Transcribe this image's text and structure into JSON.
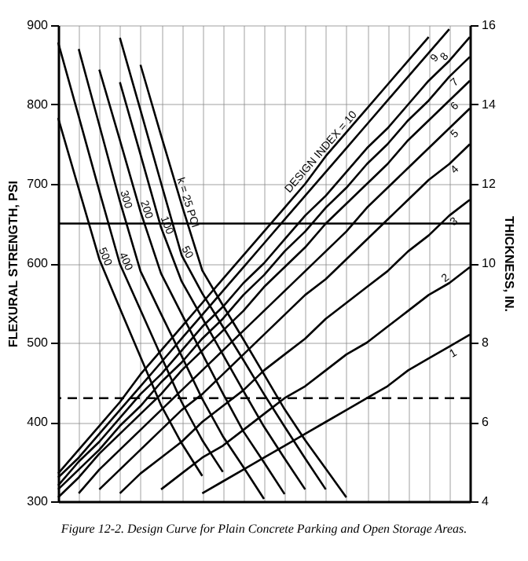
{
  "chart_data": {
    "type": "line",
    "categories": [
      null,
      null,
      null,
      null,
      null,
      null,
      null,
      null,
      null,
      null,
      null,
      null,
      null,
      null,
      null,
      null,
      null,
      null,
      null,
      null,
      null
    ],
    "series": [
      {
        "name": "500",
        "color": "#000000",
        "values": [
          783,
          694,
          605,
          543,
          482,
          421,
          373,
          332,
          null,
          null,
          null,
          null,
          null,
          null,
          null,
          null,
          null,
          null,
          null,
          null,
          null
        ]
      },
      {
        "name": "400",
        "color": "#000000",
        "values": [
          878,
          785,
          691,
          599,
          541,
          483,
          425,
          377,
          337,
          null,
          null,
          null,
          null,
          null,
          null,
          null,
          null,
          null,
          null,
          null,
          null
        ]
      },
      {
        "name": "300",
        "color": "#000000",
        "values": [
          null,
          870,
          774,
          678,
          590,
          536,
          483,
          429,
          382,
          343,
          303,
          null,
          null,
          null,
          null,
          null,
          null,
          null,
          null,
          null,
          null
        ]
      },
      {
        "name": "200",
        "color": "#000000",
        "values": [
          null,
          null,
          844,
          755,
          665,
          587,
          536,
          486,
          436,
          388,
          349,
          309,
          null,
          null,
          null,
          null,
          null,
          null,
          null,
          null,
          null
        ]
      },
      {
        "name": "100",
        "color": "#000000",
        "values": [
          null,
          null,
          null,
          828,
          737,
          645,
          577,
          531,
          485,
          439,
          394,
          354,
          315,
          null,
          null,
          null,
          null,
          null,
          null,
          null,
          null
        ]
      },
      {
        "name": "50",
        "color": "#000000",
        "values": [
          null,
          null,
          null,
          884,
          793,
          701,
          610,
          562,
          520,
          478,
          435,
          394,
          354,
          315,
          null,
          null,
          null,
          null,
          null,
          null,
          null
        ]
      },
      {
        "name": "k = 25 PCI",
        "color": "#000000",
        "values": [
          null,
          null,
          null,
          null,
          850,
          761,
          674,
          591,
          547,
          504,
          460,
          416,
          377,
          341,
          305,
          null,
          null,
          null,
          null,
          null,
          null
        ]
      },
      {
        "name": "DESIGN INDEX = 10",
        "color": "#000000",
        "axis": "y2",
        "values": [
          4.7,
          5.3,
          5.9,
          6.5,
          7.2,
          7.8,
          8.4,
          9.0,
          9.6,
          10.2,
          10.8,
          11.4,
          12.0,
          12.7,
          13.3,
          13.9,
          14.5,
          15.1,
          15.7,
          null,
          null
        ]
      },
      {
        "name": "9",
        "color": "#000000",
        "axis": "y2",
        "values": [
          4.6,
          5.1,
          5.7,
          6.3,
          6.9,
          7.5,
          8.1,
          8.7,
          9.3,
          9.9,
          10.5,
          11.1,
          11.7,
          12.3,
          12.9,
          13.5,
          14.1,
          14.7,
          15.3,
          15.9,
          null
        ]
      },
      {
        "name": "8",
        "color": "#000000",
        "axis": "y2",
        "values": [
          4.4,
          5.0,
          5.5,
          6.1,
          6.7,
          7.2,
          7.8,
          8.4,
          8.9,
          9.5,
          10.0,
          10.6,
          11.2,
          11.7,
          12.3,
          12.9,
          13.4,
          14.0,
          14.6,
          15.1,
          15.7
        ]
      },
      {
        "name": "7",
        "color": "#000000",
        "axis": "y2",
        "values": [
          4.3,
          4.8,
          5.3,
          5.9,
          6.4,
          7.0,
          7.5,
          8.1,
          8.6,
          9.2,
          9.7,
          10.3,
          10.8,
          11.4,
          11.9,
          12.5,
          13.0,
          13.6,
          14.1,
          14.7,
          15.2
        ]
      },
      {
        "name": "6",
        "color": "#000000",
        "axis": "y2",
        "values": [
          4.1,
          4.6,
          5.2,
          5.7,
          6.2,
          6.7,
          7.3,
          7.8,
          8.3,
          8.8,
          9.4,
          9.9,
          10.4,
          11.0,
          11.5,
          12.0,
          12.5,
          13.1,
          13.6,
          14.1,
          14.6
        ]
      },
      {
        "name": "5",
        "color": "#000000",
        "axis": "y2",
        "values": [
          null,
          4.2,
          4.8,
          5.3,
          5.8,
          6.3,
          6.8,
          7.3,
          7.8,
          8.3,
          8.8,
          9.3,
          9.8,
          10.3,
          10.8,
          11.4,
          11.9,
          12.4,
          12.9,
          13.4,
          13.9
        ]
      },
      {
        "name": "4",
        "color": "#000000",
        "axis": "y2",
        "values": [
          null,
          null,
          4.3,
          4.8,
          5.3,
          5.8,
          6.3,
          6.7,
          7.2,
          7.7,
          8.2,
          8.7,
          9.2,
          9.6,
          10.1,
          10.6,
          11.1,
          11.6,
          12.1,
          12.5,
          13.0
        ]
      },
      {
        "name": "3",
        "color": "#000000",
        "axis": "y2",
        "values": [
          null,
          null,
          null,
          4.2,
          4.7,
          5.1,
          5.5,
          6.0,
          6.4,
          6.8,
          7.3,
          7.7,
          8.1,
          8.6,
          9.0,
          9.4,
          9.8,
          10.3,
          10.7,
          11.2,
          11.6
        ]
      },
      {
        "name": "2",
        "color": "#000000",
        "axis": "y2",
        "values": [
          null,
          null,
          null,
          null,
          null,
          4.3,
          4.7,
          5.1,
          5.4,
          5.8,
          6.2,
          6.6,
          6.9,
          7.3,
          7.7,
          8.0,
          8.4,
          8.8,
          9.2,
          9.5,
          9.9
        ]
      },
      {
        "name": "1",
        "color": "#000000",
        "axis": "y2",
        "values": [
          null,
          null,
          null,
          null,
          null,
          null,
          null,
          4.2,
          4.5,
          4.8,
          5.1,
          5.4,
          5.7,
          6.0,
          6.3,
          6.6,
          6.9,
          7.3,
          7.6,
          7.9,
          8.2
        ]
      }
    ],
    "ylim": [
      300,
      900
    ],
    "yticks": [
      300,
      400,
      500,
      600,
      700,
      800,
      900
    ],
    "y2lim": [
      4,
      16
    ],
    "y2ticks": [
      4,
      6,
      8,
      10,
      12,
      14,
      16
    ],
    "ylabel": "FLEXURAL STRENGTH, PSI",
    "y2label": "THICKNESS, IN.",
    "grid": true,
    "tick_labels": "y",
    "ref_lines": [
      {
        "axis": "y",
        "value": 650,
        "line_style": "solid"
      },
      {
        "axis": "y",
        "value": 430,
        "line_style": "dashed"
      }
    ],
    "annotations": [
      "Figure 12-2.  Design Curve for Plain Concrete Parking and Open Storage Areas."
    ]
  }
}
